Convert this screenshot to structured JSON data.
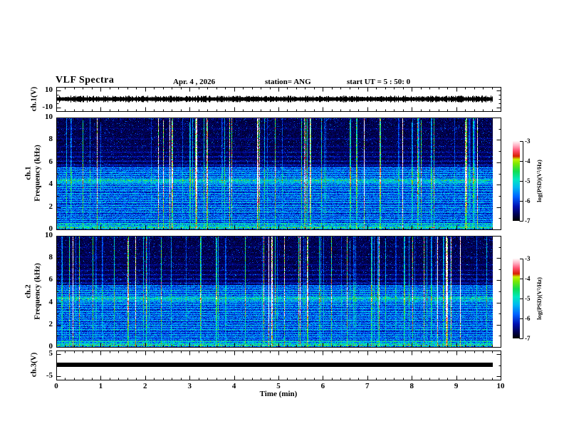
{
  "header": {
    "title": "VLF Spectra",
    "date": "Apr. 4 , 2026",
    "station": "station= ANG",
    "start_ut": "start UT =  5 : 50: 0"
  },
  "xaxis": {
    "label": "Time (min)",
    "ticks": [
      0,
      1,
      2,
      3,
      4,
      5,
      6,
      7,
      8,
      9,
      10
    ],
    "minor_step": 0.2,
    "xlim": [
      0,
      10
    ],
    "data_end_min": 9.83
  },
  "chart_data": [
    {
      "panel": "ch1_waveform",
      "type": "line",
      "ylabel": "ch.1(V)",
      "ylim": [
        -14,
        14
      ],
      "yticks": [
        10,
        -10
      ],
      "minor_yticks": [
        5,
        0,
        -5
      ],
      "signal": {
        "kind": "continuous broadband noise band",
        "mean_v": 0,
        "typical_peak_v": 3
      }
    },
    {
      "panel": "ch1_spectrogram",
      "type": "heatmap",
      "ylabel_line1": "ch.1",
      "ylabel_line2": "Frequency (kHz)",
      "ylim": [
        0,
        10
      ],
      "yticks": [
        0,
        2,
        4,
        6,
        8,
        10
      ],
      "minor_yticks": [
        1,
        3,
        5,
        7,
        9
      ],
      "colorbar": {
        "label": "log(PSD)(V²/Hz)",
        "ticks": [
          -3,
          -4,
          -5,
          -6,
          -7
        ],
        "zlim": [
          -7,
          -3
        ]
      },
      "features": {
        "sferics": "dense vertical impulsive streaks, strongest above ~5.5 kHz",
        "brightest_band_khz": 4.35,
        "harmonic_bands_khz_strength": [
          [
            0.15,
            0.85
          ],
          [
            0.3,
            0.5
          ],
          [
            0.5,
            0.6
          ],
          [
            0.7,
            0.45
          ],
          [
            0.9,
            0.55
          ],
          [
            1.1,
            0.5
          ],
          [
            1.3,
            0.45
          ],
          [
            1.55,
            0.65
          ],
          [
            1.75,
            0.5
          ],
          [
            1.95,
            0.6
          ],
          [
            2.15,
            0.5
          ],
          [
            2.4,
            0.6
          ],
          [
            2.6,
            0.5
          ],
          [
            2.8,
            0.55
          ],
          [
            3.0,
            0.5
          ],
          [
            3.2,
            0.6
          ],
          [
            3.45,
            0.55
          ],
          [
            3.65,
            0.5
          ],
          [
            3.85,
            0.65
          ],
          [
            4.05,
            0.6
          ],
          [
            4.2,
            0.75
          ],
          [
            4.35,
            1.0
          ],
          [
            4.5,
            0.8
          ],
          [
            4.7,
            0.6
          ],
          [
            4.9,
            0.55
          ],
          [
            5.1,
            0.6
          ],
          [
            5.3,
            0.5
          ],
          [
            5.5,
            0.45
          ],
          [
            5.75,
            0.35
          ],
          [
            6.1,
            0.3
          ],
          [
            6.5,
            0.28
          ],
          [
            6.9,
            0.22
          ],
          [
            7.4,
            0.15
          ],
          [
            8.1,
            0.15
          ],
          [
            9.0,
            0.1
          ],
          [
            9.97,
            0.75
          ]
        ]
      }
    },
    {
      "panel": "ch2_spectrogram",
      "type": "heatmap",
      "ylabel_line1": "ch.2",
      "ylabel_line2": "Frequency (kHz)",
      "ylim": [
        0,
        10
      ],
      "yticks": [
        0,
        2,
        4,
        6,
        8,
        10
      ],
      "minor_yticks": [
        1,
        3,
        5,
        7,
        9
      ],
      "colorbar": {
        "label": "log(PSD)(V²/Hz)",
        "ticks": [
          -3,
          -4,
          -5,
          -6,
          -7
        ],
        "zlim": [
          -7,
          -3
        ]
      },
      "features": {
        "sferics": "dense vertical impulsive streaks, strongest above ~5.5 kHz",
        "brightest_band_khz": 4.35,
        "harmonic_bands_khz_strength": [
          [
            0.15,
            0.85
          ],
          [
            0.3,
            0.5
          ],
          [
            0.5,
            0.6
          ],
          [
            0.7,
            0.45
          ],
          [
            0.9,
            0.55
          ],
          [
            1.1,
            0.5
          ],
          [
            1.3,
            0.45
          ],
          [
            1.55,
            0.65
          ],
          [
            1.75,
            0.5
          ],
          [
            1.95,
            0.6
          ],
          [
            2.15,
            0.5
          ],
          [
            2.4,
            0.6
          ],
          [
            2.6,
            0.5
          ],
          [
            2.8,
            0.55
          ],
          [
            3.0,
            0.5
          ],
          [
            3.2,
            0.6
          ],
          [
            3.45,
            0.55
          ],
          [
            3.65,
            0.5
          ],
          [
            3.85,
            0.65
          ],
          [
            4.05,
            0.6
          ],
          [
            4.2,
            0.75
          ],
          [
            4.35,
            1.0
          ],
          [
            4.5,
            0.8
          ],
          [
            4.7,
            0.6
          ],
          [
            4.9,
            0.55
          ],
          [
            5.1,
            0.6
          ],
          [
            5.3,
            0.5
          ],
          [
            5.5,
            0.45
          ],
          [
            5.75,
            0.35
          ],
          [
            6.1,
            0.3
          ],
          [
            6.5,
            0.28
          ],
          [
            6.9,
            0.22
          ],
          [
            7.4,
            0.15
          ],
          [
            8.1,
            0.15
          ],
          [
            9.0,
            0.1
          ],
          [
            9.97,
            0.75
          ]
        ]
      }
    },
    {
      "panel": "ch3_waveform",
      "type": "line",
      "ylabel": "ch.3(V)",
      "ylim": [
        -6.6,
        6.6
      ],
      "yticks": [
        5,
        -5
      ],
      "minor_yticks": [
        0
      ],
      "signal": {
        "kind": "flat saturated trace",
        "value_v": 0
      }
    }
  ],
  "colors": {
    "background": "#ffffff",
    "axis": "#000000",
    "trace": "#000000",
    "colormap": [
      [
        0.0,
        "#000000"
      ],
      [
        0.08,
        "#000050"
      ],
      [
        0.18,
        "#0010b0"
      ],
      [
        0.3,
        "#0060ff"
      ],
      [
        0.42,
        "#00b8f0"
      ],
      [
        0.52,
        "#00e8c0"
      ],
      [
        0.62,
        "#10dd50"
      ],
      [
        0.72,
        "#80e800"
      ],
      [
        0.77,
        "#c8f000"
      ],
      [
        0.81,
        "#d82000"
      ],
      [
        0.88,
        "#ff5070"
      ],
      [
        0.94,
        "#ffacc0"
      ],
      [
        1.0,
        "#fffafa"
      ]
    ]
  }
}
